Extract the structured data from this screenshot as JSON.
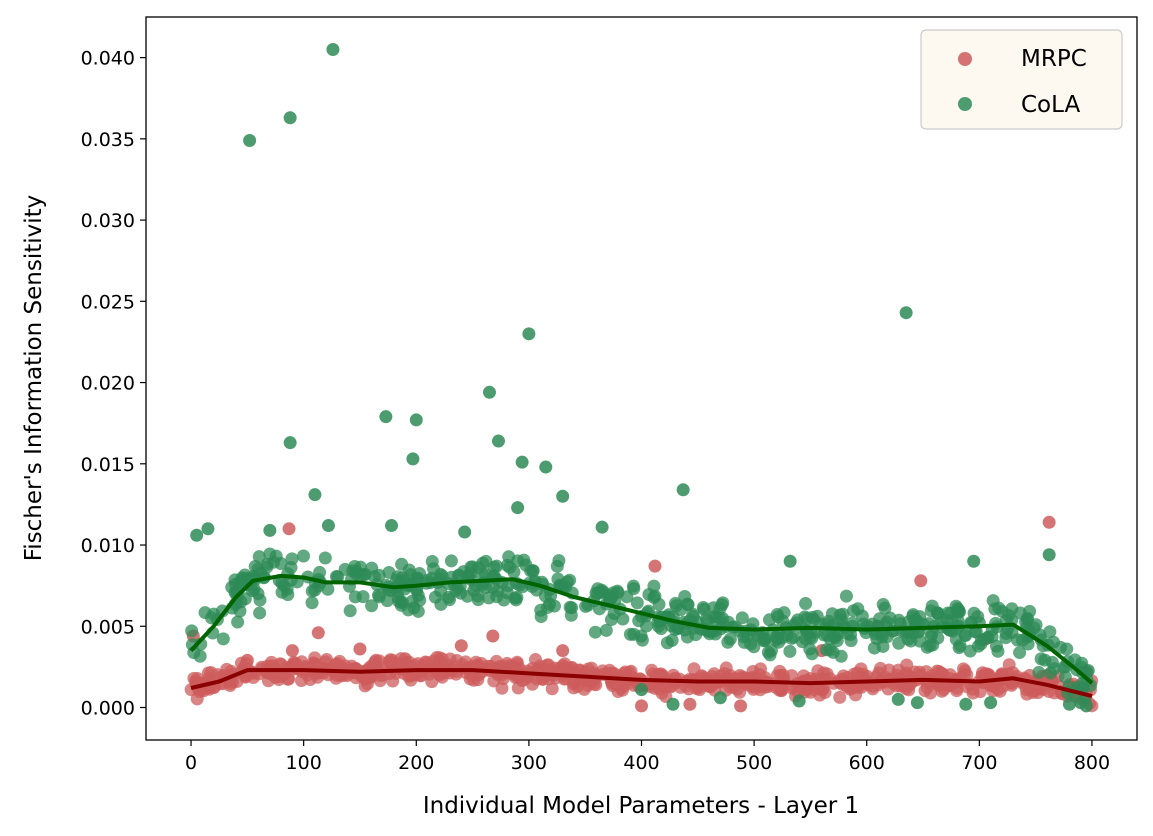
{
  "chart_data": {
    "type": "scatter",
    "title": "",
    "xlabel": "Individual Model Parameters - Layer 1",
    "ylabel": "Fischer's Information Sensitivity",
    "xlim": [
      -40,
      840
    ],
    "ylim": [
      -0.002,
      0.0425
    ],
    "x_ticks": [
      0,
      100,
      200,
      300,
      400,
      500,
      600,
      700,
      800
    ],
    "x_tick_labels": [
      "0",
      "100",
      "200",
      "300",
      "400",
      "500",
      "600",
      "700",
      "800"
    ],
    "y_ticks": [
      0.0,
      0.005,
      0.01,
      0.015,
      0.02,
      0.025,
      0.03,
      0.035,
      0.04
    ],
    "y_tick_labels": [
      "0.000",
      "0.005",
      "0.010",
      "0.015",
      "0.020",
      "0.025",
      "0.030",
      "0.035",
      "0.040"
    ],
    "grid": false,
    "legend_position": "top-right",
    "series": [
      {
        "name": "MRPC",
        "color": "#cd5c5c",
        "trend_color": "#8b0000",
        "trend": [
          [
            0,
            0.0012
          ],
          [
            25,
            0.0016
          ],
          [
            50,
            0.0023
          ],
          [
            100,
            0.0023
          ],
          [
            150,
            0.0022
          ],
          [
            200,
            0.0023
          ],
          [
            250,
            0.0023
          ],
          [
            300,
            0.0021
          ],
          [
            350,
            0.0019
          ],
          [
            400,
            0.0017
          ],
          [
            450,
            0.0016
          ],
          [
            500,
            0.0016
          ],
          [
            550,
            0.0015
          ],
          [
            600,
            0.0016
          ],
          [
            650,
            0.0017
          ],
          [
            700,
            0.0016
          ],
          [
            730,
            0.0018
          ],
          [
            760,
            0.0014
          ],
          [
            800,
            0.0007
          ]
        ],
        "baseline": {
          "range": [
            0,
            800
          ],
          "count": 800,
          "amplitude": 0.0011
        },
        "points": [
          [
            87,
            0.011
          ],
          [
            762,
            0.0114
          ],
          [
            412,
            0.0087
          ],
          [
            648,
            0.0078
          ],
          [
            2,
            0.0044
          ],
          [
            113,
            0.0046
          ],
          [
            268,
            0.0044
          ],
          [
            240,
            0.0038
          ],
          [
            330,
            0.0035
          ],
          [
            560,
            0.0035
          ],
          [
            610,
            0.005
          ],
          [
            705,
            0.0042
          ],
          [
            150,
            0.0036
          ],
          [
            90,
            0.0035
          ],
          [
            400,
            0.0001
          ],
          [
            488,
            0.0001
          ],
          [
            443,
            0.0002
          ],
          [
            795,
            0.0022
          ],
          [
            50,
            0.0029
          ],
          [
            190,
            0.003
          ]
        ]
      },
      {
        "name": "CoLA",
        "color": "#2e8b57",
        "trend_color": "#006400",
        "trend": [
          [
            0,
            0.0035
          ],
          [
            20,
            0.005
          ],
          [
            40,
            0.0068
          ],
          [
            55,
            0.0078
          ],
          [
            80,
            0.0081
          ],
          [
            100,
            0.008
          ],
          [
            120,
            0.0077
          ],
          [
            150,
            0.0077
          ],
          [
            180,
            0.0074
          ],
          [
            200,
            0.0075
          ],
          [
            230,
            0.0077
          ],
          [
            260,
            0.0078
          ],
          [
            285,
            0.0079
          ],
          [
            310,
            0.0075
          ],
          [
            340,
            0.0068
          ],
          [
            370,
            0.0063
          ],
          [
            400,
            0.0058
          ],
          [
            430,
            0.0053
          ],
          [
            460,
            0.0049
          ],
          [
            500,
            0.0048
          ],
          [
            550,
            0.0049
          ],
          [
            600,
            0.0048
          ],
          [
            650,
            0.0049
          ],
          [
            700,
            0.005
          ],
          [
            730,
            0.0051
          ],
          [
            760,
            0.0038
          ],
          [
            785,
            0.0024
          ],
          [
            800,
            0.0015
          ]
        ],
        "baseline": {
          "range": [
            0,
            800
          ],
          "count": 600,
          "amplitude": 0.0024
        },
        "points": [
          [
            126,
            0.0405
          ],
          [
            88,
            0.0363
          ],
          [
            52,
            0.0349
          ],
          [
            635,
            0.0243
          ],
          [
            300,
            0.023
          ],
          [
            265,
            0.0194
          ],
          [
            173,
            0.0179
          ],
          [
            200,
            0.0177
          ],
          [
            88,
            0.0163
          ],
          [
            273,
            0.0164
          ],
          [
            197,
            0.0153
          ],
          [
            294,
            0.0151
          ],
          [
            315,
            0.0148
          ],
          [
            437,
            0.0134
          ],
          [
            330,
            0.013
          ],
          [
            110,
            0.0131
          ],
          [
            290,
            0.0123
          ],
          [
            365,
            0.0111
          ],
          [
            762,
            0.0094
          ],
          [
            532,
            0.009
          ],
          [
            15,
            0.011
          ],
          [
            5,
            0.0106
          ],
          [
            70,
            0.0109
          ],
          [
            122,
            0.0112
          ],
          [
            178,
            0.0112
          ],
          [
            243,
            0.0108
          ],
          [
            695,
            0.009
          ],
          [
            400,
            0.0011
          ],
          [
            428,
            0.0002
          ],
          [
            470,
            0.0006
          ],
          [
            540,
            0.0004
          ],
          [
            628,
            0.0005
          ],
          [
            645,
            0.0003
          ],
          [
            688,
            0.0002
          ],
          [
            710,
            0.0003
          ],
          [
            780,
            0.0002
          ],
          [
            790,
            0.0003
          ],
          [
            795,
            0.0001
          ]
        ]
      }
    ]
  }
}
